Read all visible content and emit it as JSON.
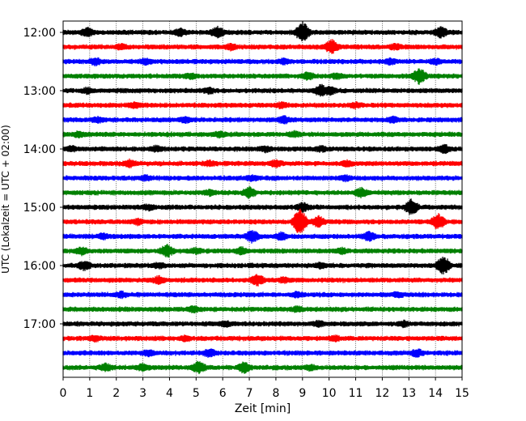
{
  "chart_data": {
    "type": "line",
    "title": "",
    "xlabel": "Zeit  [min]",
    "ylabel": "UTC (Lokalzeit = UTC + 02:00)",
    "xlim": [
      0,
      15
    ],
    "x_ticks": [
      "0",
      "1",
      "2",
      "3",
      "4",
      "5",
      "6",
      "7",
      "8",
      "9",
      "10",
      "11",
      "12",
      "13",
      "14",
      "15"
    ],
    "y_ticks": [
      "12:00",
      "13:00",
      "14:00",
      "15:00",
      "16:00",
      "17:00"
    ],
    "grid": "vertical dotted",
    "rows_per_hour": 4,
    "trace_colors": [
      "#000000",
      "#ff0000",
      "#0000ff",
      "#008000"
    ],
    "traces": [
      {
        "start": "12:00",
        "events": [
          [
            0.9,
            5
          ],
          [
            4.4,
            4
          ],
          [
            5.8,
            6
          ],
          [
            9.0,
            12
          ],
          [
            14.2,
            6
          ]
        ]
      },
      {
        "start": "12:15",
        "events": [
          [
            2.2,
            3
          ],
          [
            6.3,
            3
          ],
          [
            10.1,
            8
          ],
          [
            12.5,
            3
          ]
        ]
      },
      {
        "start": "12:30",
        "events": [
          [
            1.2,
            4
          ],
          [
            3.1,
            3
          ],
          [
            8.3,
            3
          ],
          [
            12.3,
            3
          ],
          [
            14.0,
            3
          ]
        ]
      },
      {
        "start": "12:45",
        "events": [
          [
            4.8,
            3
          ],
          [
            9.2,
            4
          ],
          [
            10.3,
            3
          ],
          [
            13.4,
            9
          ]
        ]
      },
      {
        "start": "13:00",
        "events": [
          [
            0.9,
            3
          ],
          [
            5.5,
            3
          ],
          [
            9.7,
            7
          ],
          [
            10.0,
            5
          ]
        ]
      },
      {
        "start": "13:15",
        "events": [
          [
            2.7,
            3
          ],
          [
            8.2,
            3
          ],
          [
            11.0,
            3
          ]
        ]
      },
      {
        "start": "13:30",
        "events": [
          [
            1.3,
            3
          ],
          [
            4.6,
            3
          ],
          [
            8.3,
            4
          ],
          [
            12.4,
            3
          ]
        ]
      },
      {
        "start": "13:45",
        "events": [
          [
            0.6,
            3
          ],
          [
            5.9,
            3
          ],
          [
            8.7,
            3
          ]
        ]
      },
      {
        "start": "14:00",
        "events": [
          [
            0.3,
            3
          ],
          [
            3.5,
            3
          ],
          [
            7.6,
            3
          ],
          [
            9.7,
            3
          ],
          [
            14.3,
            5
          ]
        ]
      },
      {
        "start": "14:15",
        "events": [
          [
            2.5,
            4
          ],
          [
            5.5,
            3
          ],
          [
            8.0,
            4
          ],
          [
            10.7,
            3
          ]
        ]
      },
      {
        "start": "14:30",
        "events": [
          [
            3.1,
            3
          ],
          [
            7.1,
            3
          ],
          [
            10.6,
            3
          ]
        ]
      },
      {
        "start": "14:45",
        "events": [
          [
            5.5,
            3
          ],
          [
            7.0,
            6
          ],
          [
            11.2,
            5
          ]
        ]
      },
      {
        "start": "15:00",
        "events": [
          [
            3.2,
            3
          ],
          [
            9.0,
            5
          ],
          [
            13.1,
            9
          ]
        ]
      },
      {
        "start": "15:15",
        "events": [
          [
            2.8,
            3
          ],
          [
            8.9,
            16
          ],
          [
            9.6,
            6
          ],
          [
            14.1,
            9
          ]
        ]
      },
      {
        "start": "15:30",
        "events": [
          [
            1.5,
            3
          ],
          [
            7.1,
            7
          ],
          [
            8.2,
            4
          ],
          [
            11.5,
            5
          ]
        ]
      },
      {
        "start": "15:45",
        "events": [
          [
            0.7,
            4
          ],
          [
            3.9,
            7
          ],
          [
            5.0,
            3
          ],
          [
            6.7,
            4
          ],
          [
            10.5,
            3
          ]
        ]
      },
      {
        "start": "16:00",
        "events": [
          [
            0.8,
            5
          ],
          [
            3.6,
            3
          ],
          [
            9.7,
            3
          ],
          [
            14.3,
            11
          ]
        ]
      },
      {
        "start": "16:15",
        "events": [
          [
            3.6,
            4
          ],
          [
            7.3,
            6
          ],
          [
            8.3,
            3
          ]
        ]
      },
      {
        "start": "16:30",
        "events": [
          [
            2.2,
            3
          ],
          [
            8.8,
            3
          ],
          [
            12.6,
            3
          ]
        ]
      },
      {
        "start": "16:45",
        "events": [
          [
            4.9,
            3
          ],
          [
            8.8,
            3
          ]
        ]
      },
      {
        "start": "17:00",
        "events": [
          [
            6.1,
            3
          ],
          [
            9.6,
            3
          ],
          [
            12.8,
            3
          ]
        ]
      },
      {
        "start": "17:15",
        "events": [
          [
            1.2,
            3
          ],
          [
            4.6,
            3
          ],
          [
            10.2,
            3
          ]
        ]
      },
      {
        "start": "17:30",
        "events": [
          [
            3.2,
            3
          ],
          [
            5.5,
            4
          ],
          [
            13.3,
            4
          ]
        ]
      },
      {
        "start": "17:45",
        "events": [
          [
            1.6,
            4
          ],
          [
            3.0,
            4
          ],
          [
            5.1,
            7
          ],
          [
            6.8,
            6
          ],
          [
            9.3,
            3
          ]
        ]
      }
    ]
  }
}
